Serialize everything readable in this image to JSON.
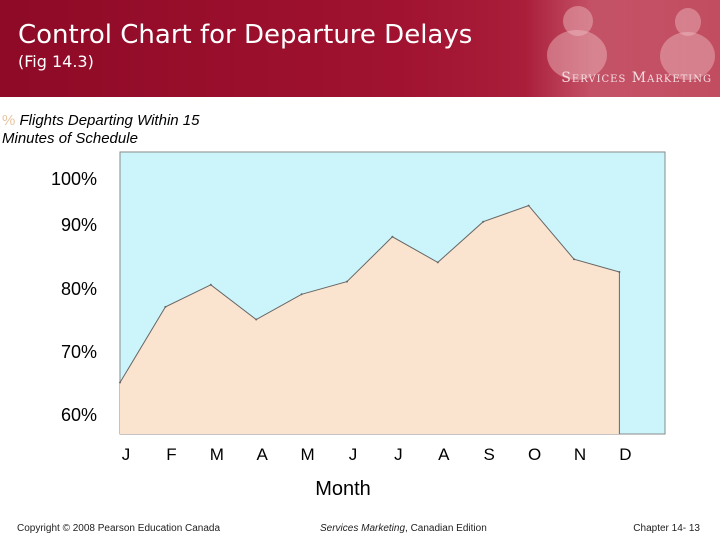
{
  "header": {
    "title": "Control Chart for Departure Delays",
    "subtitle": "(Fig 14.3)",
    "brand": "Services Marketing"
  },
  "colors": {
    "header_bg": "#9c102e",
    "plot_bg": "#ccf5fb",
    "area_fill": "#fbe4cf",
    "line": "#666666"
  },
  "chart_data": {
    "type": "area",
    "categories": [
      "J",
      "F",
      "M",
      "A",
      "M",
      "J",
      "J",
      "A",
      "S",
      "O",
      "N",
      "D"
    ],
    "values": [
      65,
      77,
      80.5,
      75,
      79,
      81,
      88,
      84,
      90.5,
      94,
      84.5,
      82.5
    ],
    "ylabel_symbol": "%",
    "ylabel": "Flights Departing Within 15 Minutes of Schedule",
    "xlabel": "Month",
    "yticks": [
      "100%",
      "90%",
      "80%",
      "70%",
      "60%"
    ],
    "ytick_values": [
      100,
      90,
      80,
      70,
      60
    ],
    "ylim": [
      60,
      100
    ],
    "grid": false,
    "legend": "none"
  },
  "footer": {
    "left": "Copyright © 2008 Pearson Education Canada",
    "center_italic": "Services Marketing",
    "center_rest": ", Canadian Edition",
    "right": "Chapter 14- 13"
  }
}
